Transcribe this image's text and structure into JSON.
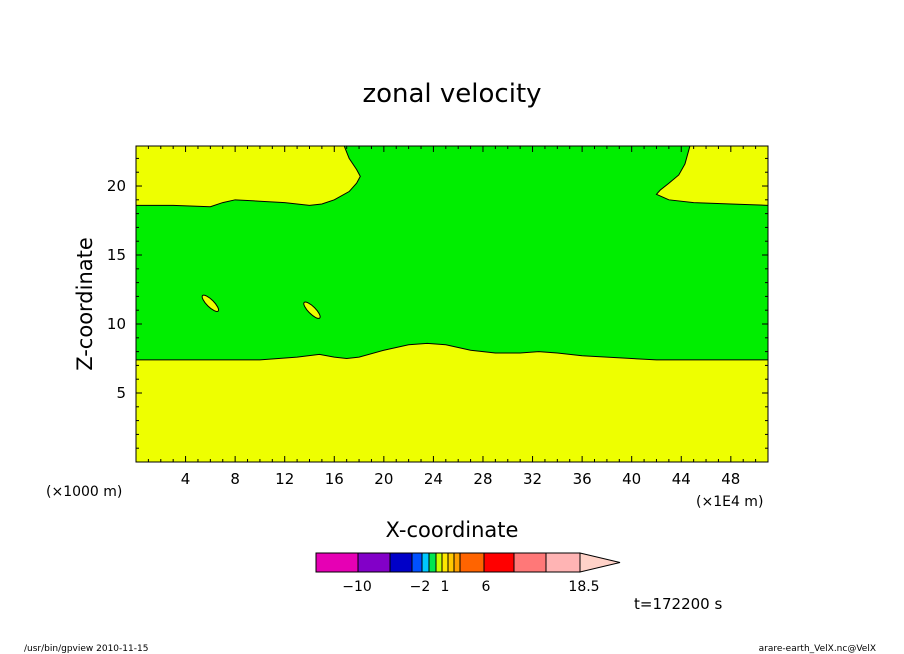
{
  "chart_data": {
    "type": "contour",
    "title": "zonal velocity",
    "xlabel": "X-coordinate",
    "ylabel": "Z-coordinate",
    "x_unit_label": "(×1000 m)",
    "x_unit_label_right": "(×1E4 m)",
    "xlim": [
      0,
      51
    ],
    "ylim": [
      0,
      22.9
    ],
    "xticks": [
      4,
      8,
      12,
      16,
      20,
      24,
      28,
      32,
      36,
      40,
      44,
      48
    ],
    "yticks": [
      5,
      10,
      15,
      20
    ],
    "regions": [
      {
        "name": "lower-yellow-layer",
        "color": "#eeff00",
        "boundary_top": [
          [
            0,
            7.4
          ],
          [
            6,
            7.4
          ],
          [
            10,
            7.4
          ],
          [
            13,
            7.6
          ],
          [
            14.8,
            7.8
          ],
          [
            16,
            7.6
          ],
          [
            17,
            7.5
          ],
          [
            18,
            7.6
          ],
          [
            20,
            8.1
          ],
          [
            22,
            8.5
          ],
          [
            23.5,
            8.6
          ],
          [
            25,
            8.5
          ],
          [
            27,
            8.1
          ],
          [
            29,
            7.9
          ],
          [
            31,
            7.9
          ],
          [
            32.5,
            8.0
          ],
          [
            34,
            7.9
          ],
          [
            36,
            7.7
          ],
          [
            38,
            7.6
          ],
          [
            40,
            7.5
          ],
          [
            42,
            7.4
          ],
          [
            45,
            7.4
          ],
          [
            51,
            7.4
          ]
        ]
      },
      {
        "name": "upper-left-yellow-region",
        "color": "#eeff00",
        "boundary": [
          [
            0,
            18.6
          ],
          [
            3,
            18.6
          ],
          [
            6,
            18.5
          ],
          [
            7,
            18.8
          ],
          [
            8,
            19.0
          ],
          [
            10,
            18.9
          ],
          [
            12,
            18.8
          ],
          [
            14,
            18.6
          ],
          [
            15,
            18.7
          ],
          [
            16,
            19.0
          ],
          [
            17.2,
            19.6
          ],
          [
            17.8,
            20.2
          ],
          [
            18.1,
            20.7
          ],
          [
            17.8,
            21.2
          ],
          [
            17.2,
            22.0
          ],
          [
            16.8,
            22.9
          ],
          [
            0,
            22.9
          ]
        ]
      },
      {
        "name": "upper-right-yellow-region",
        "color": "#eeff00",
        "boundary": [
          [
            51,
            18.6
          ],
          [
            48,
            18.7
          ],
          [
            45,
            18.8
          ],
          [
            43,
            19.0
          ],
          [
            42,
            19.4
          ],
          [
            42.3,
            19.7
          ],
          [
            43,
            20.2
          ],
          [
            43.8,
            20.8
          ],
          [
            44.3,
            21.6
          ],
          [
            44.7,
            22.9
          ],
          [
            51,
            22.9
          ]
        ]
      },
      {
        "name": "green-core",
        "color": "#00ee00"
      }
    ],
    "small_islands": [
      {
        "x": 6.0,
        "y": 11.5,
        "color": "#eeff00"
      },
      {
        "x": 14.2,
        "y": 11.0,
        "color": "#eeff00"
      }
    ],
    "colorbar": {
      "colors": [
        "#e600b4",
        "#8200c8",
        "#0000c8",
        "#0050ff",
        "#00c8ff",
        "#00e650",
        "#c8ff00",
        "#ffe600",
        "#ffc800",
        "#ffa000",
        "#ff6400",
        "#ff0000",
        "#ff7878",
        "#ffb4b4",
        "#ffd2c8"
      ],
      "labels": [
        "−10",
        "−2",
        "1",
        "6",
        "18.5"
      ]
    },
    "annotation": "t=172200 s"
  },
  "footer": {
    "left": "/usr/bin/gpview   2010-11-15",
    "right": "arare-earth_VelX.nc@VelX"
  }
}
